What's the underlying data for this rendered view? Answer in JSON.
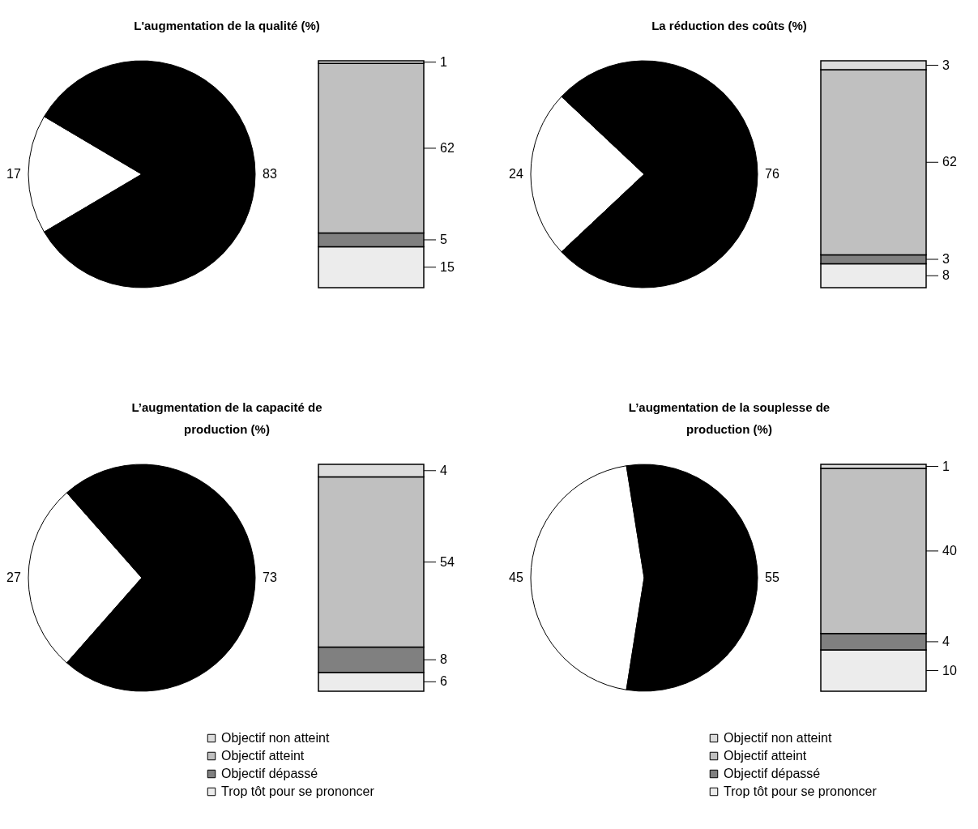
{
  "chart_data": [
    {
      "type": "pie",
      "title": "L'augmentation de la qualité (%)",
      "categories": [
        null,
        null
      ],
      "values": [
        17,
        83
      ],
      "colors": [
        "#ffffff",
        "#000000"
      ],
      "data_labels": true
    },
    {
      "type": "bar",
      "stacked": true,
      "categories": [
        null
      ],
      "data_labels": true,
      "series": [
        {
          "color": "#ececec",
          "values": [
            15
          ]
        },
        {
          "color": "#808080",
          "values": [
            5
          ]
        },
        {
          "color": "#c0c0c0",
          "values": [
            62
          ]
        },
        {
          "color": "#dcdcdc",
          "values": [
            1
          ]
        }
      ]
    },
    {
      "type": "pie",
      "title": "La réduction des coûts (%)",
      "categories": [
        null,
        null
      ],
      "values": [
        24,
        76
      ],
      "colors": [
        "#ffffff",
        "#000000"
      ],
      "data_labels": true
    },
    {
      "type": "bar",
      "stacked": true,
      "categories": [
        null
      ],
      "data_labels": true,
      "series": [
        {
          "color": "#ececec",
          "values": [
            8
          ]
        },
        {
          "color": "#808080",
          "values": [
            3
          ]
        },
        {
          "color": "#c0c0c0",
          "values": [
            62
          ]
        },
        {
          "color": "#dcdcdc",
          "values": [
            3
          ]
        }
      ]
    },
    {
      "type": "pie",
      "title": "L’augmentation de la capacité de production (%)",
      "categories": [
        null,
        null
      ],
      "values": [
        27,
        73
      ],
      "colors": [
        "#ffffff",
        "#000000"
      ],
      "data_labels": true
    },
    {
      "type": "bar",
      "stacked": true,
      "categories": [
        null
      ],
      "data_labels": true,
      "legend": "bottom",
      "series": [
        {
          "name": "Trop tôt pour se prononcer",
          "color": "#ececec",
          "values": [
            6
          ]
        },
        {
          "name": "Objectif dépassé",
          "color": "#808080",
          "values": [
            8
          ]
        },
        {
          "name": "Objectif atteint",
          "color": "#c0c0c0",
          "values": [
            54
          ]
        },
        {
          "name": "Objectif non atteint",
          "color": "#dcdcdc",
          "values": [
            4
          ]
        }
      ]
    },
    {
      "type": "pie",
      "title": "L’augmentation de la souplesse de production (%)",
      "categories": [
        null,
        null
      ],
      "values": [
        45,
        55
      ],
      "colors": [
        "#ffffff",
        "#000000"
      ],
      "data_labels": true
    },
    {
      "type": "bar",
      "stacked": true,
      "categories": [
        null
      ],
      "data_labels": true,
      "legend": "bottom",
      "series": [
        {
          "name": "Trop tôt pour se prononcer",
          "color": "#ececec",
          "values": [
            10
          ]
        },
        {
          "name": "Objectif dépassé",
          "color": "#808080",
          "values": [
            4
          ]
        },
        {
          "name": "Objectif atteint",
          "color": "#c0c0c0",
          "values": [
            40
          ]
        },
        {
          "name": "Objectif non atteint",
          "color": "#dcdcdc",
          "values": [
            1
          ]
        }
      ]
    }
  ]
}
